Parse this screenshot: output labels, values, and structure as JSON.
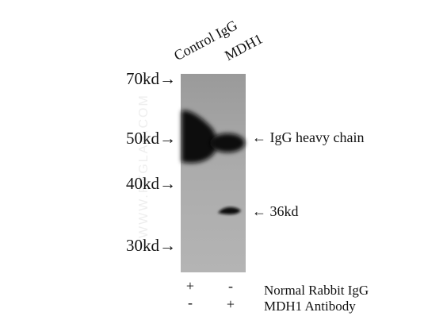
{
  "lanes": [
    {
      "label": "Control IgG"
    },
    {
      "label": "MDH1"
    }
  ],
  "markers": [
    "70kd→",
    "50kd→",
    "40kd→",
    "30kd→"
  ],
  "annotations": {
    "heavy_chain": "← IgG heavy chain",
    "target": "← 36kd"
  },
  "conditions": [
    {
      "label": "Normal Rabbit IgG",
      "values": [
        "+",
        "-"
      ]
    },
    {
      "label": "MDH1 Antibody",
      "values": [
        "-",
        "+"
      ]
    }
  ],
  "watermark": "WWW.PTGLAB.COM",
  "colors": {
    "membrane": "#a9a9a9",
    "band": "#0a0a0a"
  }
}
